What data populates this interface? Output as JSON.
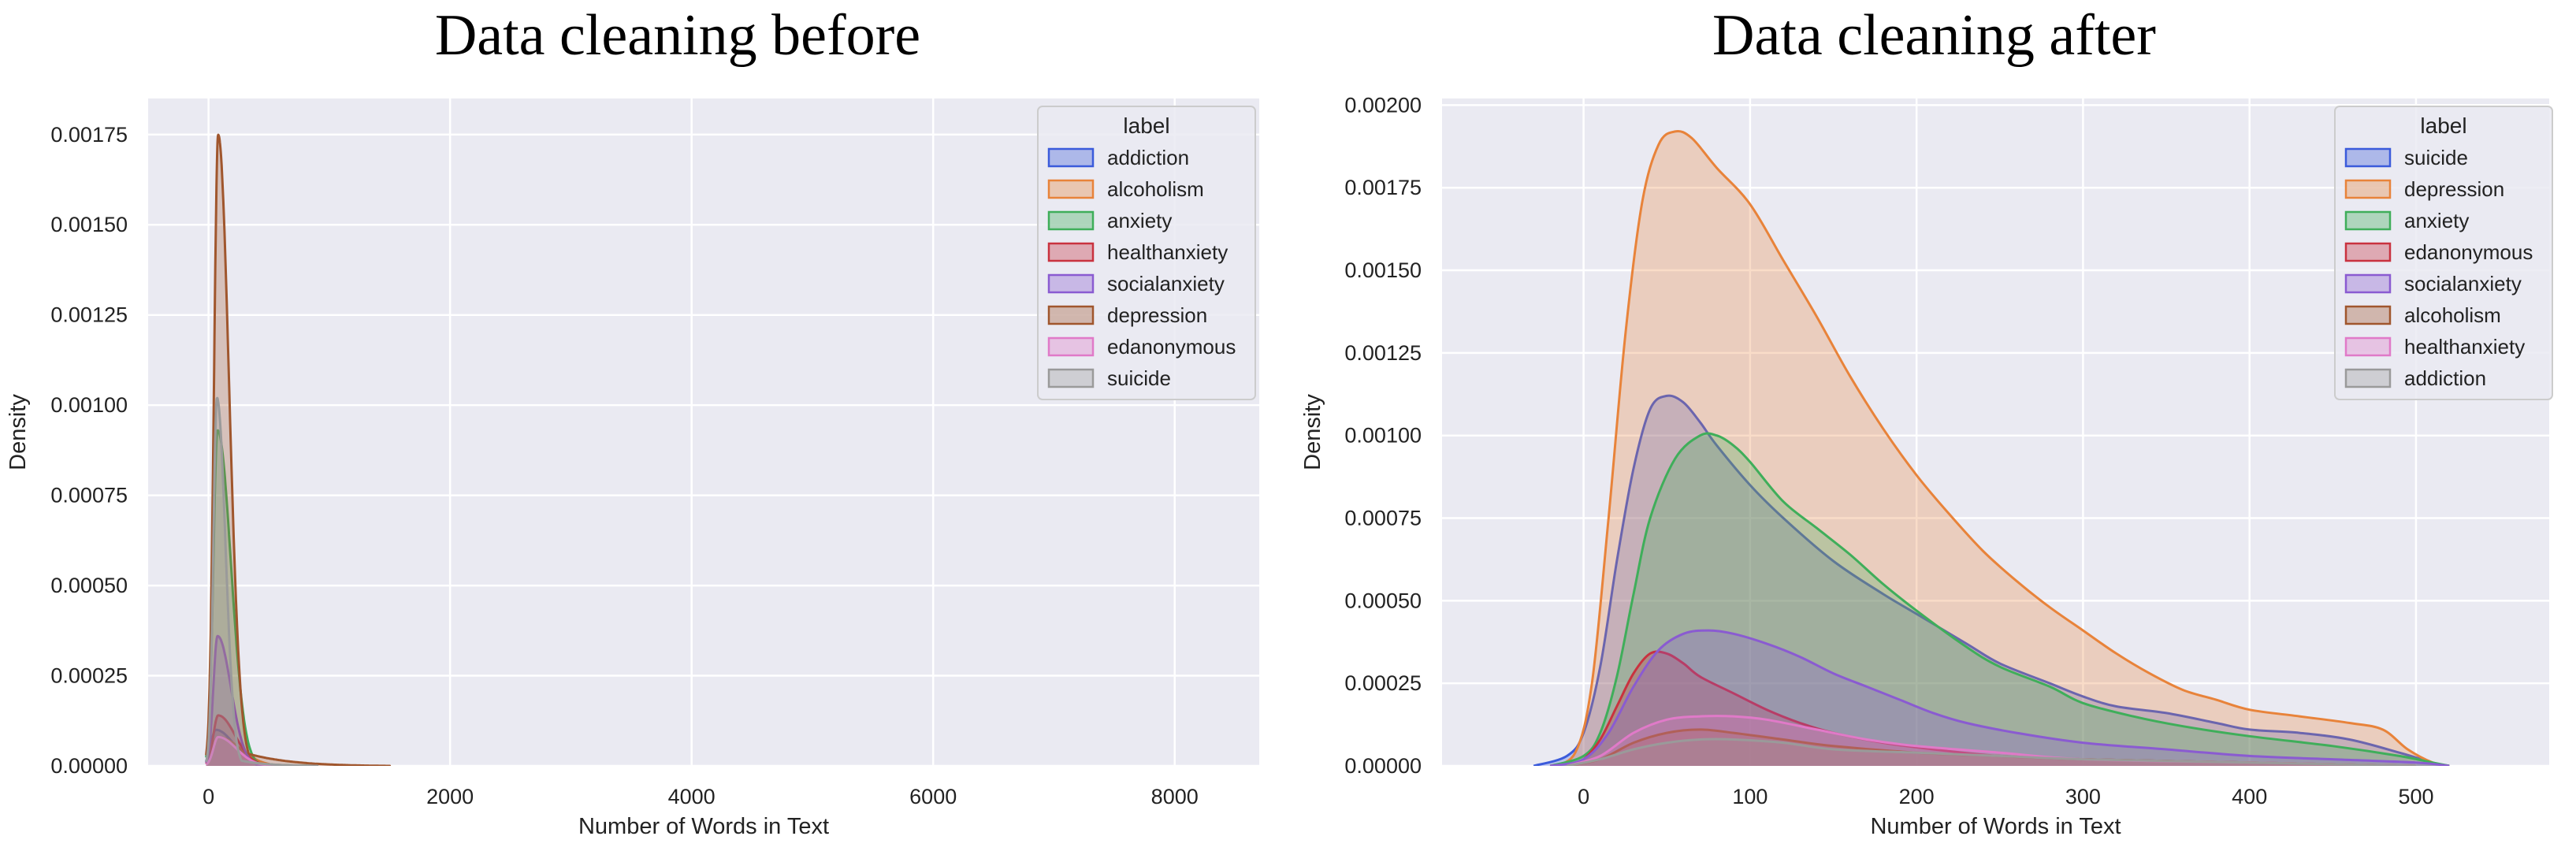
{
  "chart_data": [
    {
      "type": "area",
      "title": "Data cleaning before",
      "xlabel": "Number of Words in Text",
      "ylabel": "Density",
      "xlim": [
        -500,
        8700
      ],
      "ylim": [
        0,
        0.00185
      ],
      "xticks": [
        0,
        2000,
        4000,
        6000,
        8000
      ],
      "xtick_labels": [
        "0",
        "2000",
        "4000",
        "6000",
        "8000"
      ],
      "yticks": [
        0,
        0.00025,
        0.0005,
        0.00075,
        0.001,
        0.00125,
        0.0015,
        0.00175
      ],
      "ytick_labels": [
        "0.00000",
        "0.00025",
        "0.00050",
        "0.00075",
        "0.00100",
        "0.00125",
        "0.00150",
        "0.00175"
      ],
      "grid": true,
      "legend": {
        "title": "label",
        "position": "top-right"
      },
      "series": [
        {
          "name": "addiction",
          "color": "#3b5bdb",
          "peak_x": 60,
          "peak": 0.0001,
          "sl": 40,
          "sr": 150,
          "tail": 400
        },
        {
          "name": "alcoholism",
          "color": "#e8833a",
          "peak_x": 80,
          "peak": 8e-05,
          "sl": 50,
          "sr": 180,
          "tail": 500
        },
        {
          "name": "anxiety",
          "color": "#3fae5a",
          "peak_x": 75,
          "peak": 0.00093,
          "sl": 35,
          "sr": 110,
          "tail": 900
        },
        {
          "name": "healthanxiety",
          "color": "#c9323f",
          "peak_x": 80,
          "peak": 0.00014,
          "sl": 40,
          "sr": 140,
          "tail": 700
        },
        {
          "name": "socialanxiety",
          "color": "#8a5bd1",
          "peak_x": 75,
          "peak": 0.00036,
          "sl": 35,
          "sr": 110,
          "tail": 800
        },
        {
          "name": "depression",
          "color": "#a0562d",
          "peak_x": 80,
          "peak": 0.00175,
          "sl": 35,
          "sr": 90,
          "tail": 1500
        },
        {
          "name": "edanonymous",
          "color": "#e07ac8",
          "peak_x": 80,
          "peak": 8e-05,
          "sl": 40,
          "sr": 150,
          "tail": 600
        },
        {
          "name": "suicide",
          "color": "#9a9a9a",
          "peak_x": 70,
          "peak": 0.00102,
          "sl": 30,
          "sr": 70,
          "tail": 900
        }
      ]
    },
    {
      "type": "area",
      "title": "Data cleaning after",
      "xlabel": "Number of Words in Text",
      "ylabel": "Density",
      "xlim": [
        -85,
        580
      ],
      "ylim": [
        0,
        0.00202
      ],
      "xticks": [
        0,
        100,
        200,
        300,
        400,
        500
      ],
      "xtick_labels": [
        "0",
        "100",
        "200",
        "300",
        "400",
        "500"
      ],
      "yticks": [
        0,
        0.00025,
        0.0005,
        0.00075,
        0.001,
        0.00125,
        0.0015,
        0.00175,
        0.002
      ],
      "ytick_labels": [
        "0.00000",
        "0.00025",
        "0.00050",
        "0.00075",
        "0.00100",
        "0.00125",
        "0.00150",
        "0.00175",
        "0.00200"
      ],
      "grid": true,
      "legend": {
        "title": "label",
        "position": "top-right"
      },
      "series": [
        {
          "name": "suicide",
          "color": "#3b5bdb",
          "points": [
            [
              -30,
              0
            ],
            [
              -10,
              3e-05
            ],
            [
              0,
              0.0001
            ],
            [
              10,
              0.0003
            ],
            [
              20,
              0.00062
            ],
            [
              30,
              0.0009
            ],
            [
              40,
              0.00108
            ],
            [
              50,
              0.00112
            ],
            [
              60,
              0.0011
            ],
            [
              70,
              0.00104
            ],
            [
              80,
              0.00097
            ],
            [
              100,
              0.00085
            ],
            [
              120,
              0.00075
            ],
            [
              150,
              0.00062
            ],
            [
              180,
              0.00052
            ],
            [
              200,
              0.00046
            ],
            [
              230,
              0.00037
            ],
            [
              250,
              0.00031
            ],
            [
              280,
              0.00025
            ],
            [
              300,
              0.00021
            ],
            [
              320,
              0.00018
            ],
            [
              350,
              0.00016
            ],
            [
              380,
              0.00013
            ],
            [
              400,
              0.00011
            ],
            [
              430,
              0.0001
            ],
            [
              460,
              8e-05
            ],
            [
              490,
              4e-05
            ],
            [
              510,
              1e-05
            ],
            [
              520,
              0
            ]
          ]
        },
        {
          "name": "depression",
          "color": "#e8833a",
          "points": [
            [
              -20,
              0
            ],
            [
              -5,
              4e-05
            ],
            [
              5,
              0.00025
            ],
            [
              15,
              0.00075
            ],
            [
              25,
              0.0013
            ],
            [
              35,
              0.0017
            ],
            [
              45,
              0.00188
            ],
            [
              55,
              0.00192
            ],
            [
              65,
              0.0019
            ],
            [
              80,
              0.00181
            ],
            [
              100,
              0.0017
            ],
            [
              120,
              0.00153
            ],
            [
              140,
              0.00136
            ],
            [
              160,
              0.00118
            ],
            [
              180,
              0.00102
            ],
            [
              200,
              0.00088
            ],
            [
              220,
              0.00076
            ],
            [
              240,
              0.00065
            ],
            [
              260,
              0.00056
            ],
            [
              280,
              0.00048
            ],
            [
              300,
              0.00041
            ],
            [
              320,
              0.00034
            ],
            [
              340,
              0.00028
            ],
            [
              360,
              0.00023
            ],
            [
              380,
              0.0002
            ],
            [
              400,
              0.00017
            ],
            [
              430,
              0.00015
            ],
            [
              460,
              0.00013
            ],
            [
              480,
              0.00011
            ],
            [
              495,
              5e-05
            ],
            [
              510,
              1e-05
            ],
            [
              520,
              0
            ]
          ]
        },
        {
          "name": "anxiety",
          "color": "#3fae5a",
          "points": [
            [
              -20,
              0
            ],
            [
              0,
              3e-05
            ],
            [
              10,
              0.0001
            ],
            [
              20,
              0.00027
            ],
            [
              30,
              0.00052
            ],
            [
              40,
              0.00075
            ],
            [
              55,
              0.00093
            ],
            [
              70,
              0.001
            ],
            [
              80,
              0.001
            ],
            [
              90,
              0.00097
            ],
            [
              100,
              0.00092
            ],
            [
              120,
              0.0008
            ],
            [
              140,
              0.00072
            ],
            [
              160,
              0.00064
            ],
            [
              180,
              0.00055
            ],
            [
              200,
              0.00047
            ],
            [
              230,
              0.00036
            ],
            [
              250,
              0.0003
            ],
            [
              280,
              0.00024
            ],
            [
              300,
              0.00019
            ],
            [
              330,
              0.00015
            ],
            [
              360,
              0.00012
            ],
            [
              400,
              9e-05
            ],
            [
              450,
              6e-05
            ],
            [
              490,
              3e-05
            ],
            [
              510,
              1e-05
            ],
            [
              520,
              0
            ]
          ]
        },
        {
          "name": "edanonymous",
          "color": "#c9323f",
          "points": [
            [
              -10,
              0
            ],
            [
              0,
              2e-05
            ],
            [
              10,
              8e-05
            ],
            [
              20,
              0.00018
            ],
            [
              30,
              0.00028
            ],
            [
              40,
              0.00034
            ],
            [
              50,
              0.00034
            ],
            [
              60,
              0.00031
            ],
            [
              70,
              0.00027
            ],
            [
              90,
              0.00022
            ],
            [
              110,
              0.00017
            ],
            [
              130,
              0.00013
            ],
            [
              150,
              0.0001
            ],
            [
              180,
              7e-05
            ],
            [
              210,
              5e-05
            ],
            [
              250,
              3e-05
            ],
            [
              300,
              2e-05
            ],
            [
              400,
              1e-05
            ],
            [
              500,
              0
            ]
          ]
        },
        {
          "name": "socialanxiety",
          "color": "#8a5bd1",
          "points": [
            [
              -20,
              0
            ],
            [
              0,
              2e-05
            ],
            [
              15,
              0.0001
            ],
            [
              30,
              0.00024
            ],
            [
              45,
              0.00035
            ],
            [
              60,
              0.0004
            ],
            [
              75,
              0.00041
            ],
            [
              90,
              0.0004
            ],
            [
              110,
              0.00037
            ],
            [
              130,
              0.00033
            ],
            [
              150,
              0.00028
            ],
            [
              170,
              0.00024
            ],
            [
              190,
              0.0002
            ],
            [
              210,
              0.00016
            ],
            [
              230,
              0.00013
            ],
            [
              260,
              0.0001
            ],
            [
              300,
              7e-05
            ],
            [
              350,
              5e-05
            ],
            [
              400,
              3e-05
            ],
            [
              450,
              2e-05
            ],
            [
              500,
              1e-05
            ],
            [
              520,
              0
            ]
          ]
        },
        {
          "name": "alcoholism",
          "color": "#a0562d",
          "points": [
            [
              -10,
              0
            ],
            [
              10,
              2e-05
            ],
            [
              30,
              7e-05
            ],
            [
              50,
              0.0001
            ],
            [
              70,
              0.00011
            ],
            [
              90,
              0.0001
            ],
            [
              120,
              8e-05
            ],
            [
              150,
              6e-05
            ],
            [
              200,
              4e-05
            ],
            [
              250,
              3e-05
            ],
            [
              300,
              2e-05
            ],
            [
              400,
              1e-05
            ],
            [
              500,
              0
            ]
          ]
        },
        {
          "name": "healthanxiety",
          "color": "#e07ac8",
          "points": [
            [
              -10,
              0
            ],
            [
              10,
              3e-05
            ],
            [
              30,
              0.0001
            ],
            [
              50,
              0.00014
            ],
            [
              70,
              0.00015
            ],
            [
              90,
              0.00015
            ],
            [
              110,
              0.00014
            ],
            [
              140,
              0.00011
            ],
            [
              170,
              8e-05
            ],
            [
              200,
              6e-05
            ],
            [
              250,
              4e-05
            ],
            [
              300,
              2e-05
            ],
            [
              400,
              1e-05
            ],
            [
              500,
              0
            ]
          ]
        },
        {
          "name": "addiction",
          "color": "#9a9a9a",
          "points": [
            [
              -10,
              0
            ],
            [
              10,
              2e-05
            ],
            [
              30,
              5e-05
            ],
            [
              50,
              7e-05
            ],
            [
              70,
              8e-05
            ],
            [
              90,
              8e-05
            ],
            [
              120,
              7e-05
            ],
            [
              150,
              5e-05
            ],
            [
              200,
              4e-05
            ],
            [
              250,
              3e-05
            ],
            [
              300,
              2e-05
            ],
            [
              400,
              1e-05
            ],
            [
              500,
              0
            ]
          ]
        }
      ]
    }
  ]
}
